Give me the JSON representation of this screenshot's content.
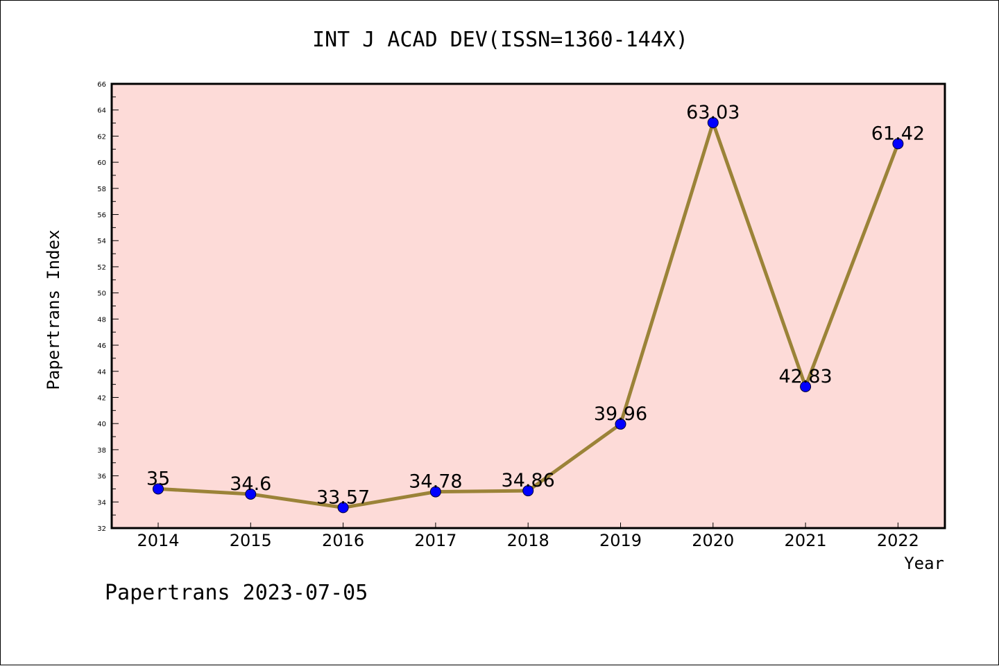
{
  "chart_data": {
    "type": "line",
    "title": "INT J ACAD DEV(ISSN=1360-144X)",
    "xlabel": "Year",
    "ylabel": "Papertrans Index",
    "categories": [
      "2014",
      "2015",
      "2016",
      "2017",
      "2018",
      "2019",
      "2020",
      "2021",
      "2022"
    ],
    "values": [
      35,
      34.6,
      33.57,
      34.78,
      34.86,
      39.96,
      63.03,
      42.83,
      61.42
    ],
    "value_labels": [
      "35",
      "34.6",
      "33.57",
      "34.78",
      "34.86",
      "39.96",
      "63.03",
      "42.83",
      "61.42"
    ],
    "ylim": [
      32,
      66
    ],
    "yticks": [
      "32",
      "34",
      "36",
      "38",
      "40",
      "42",
      "44",
      "46",
      "48",
      "50",
      "52",
      "54",
      "56",
      "58",
      "60",
      "62",
      "64",
      "66"
    ],
    "grid": false,
    "colors": {
      "plot_background": "#fddbd8",
      "line": "#9b8338",
      "marker": "#0000ff",
      "axis": "#000000"
    }
  },
  "footer": {
    "text": "Papertrans 2023-07-05"
  }
}
